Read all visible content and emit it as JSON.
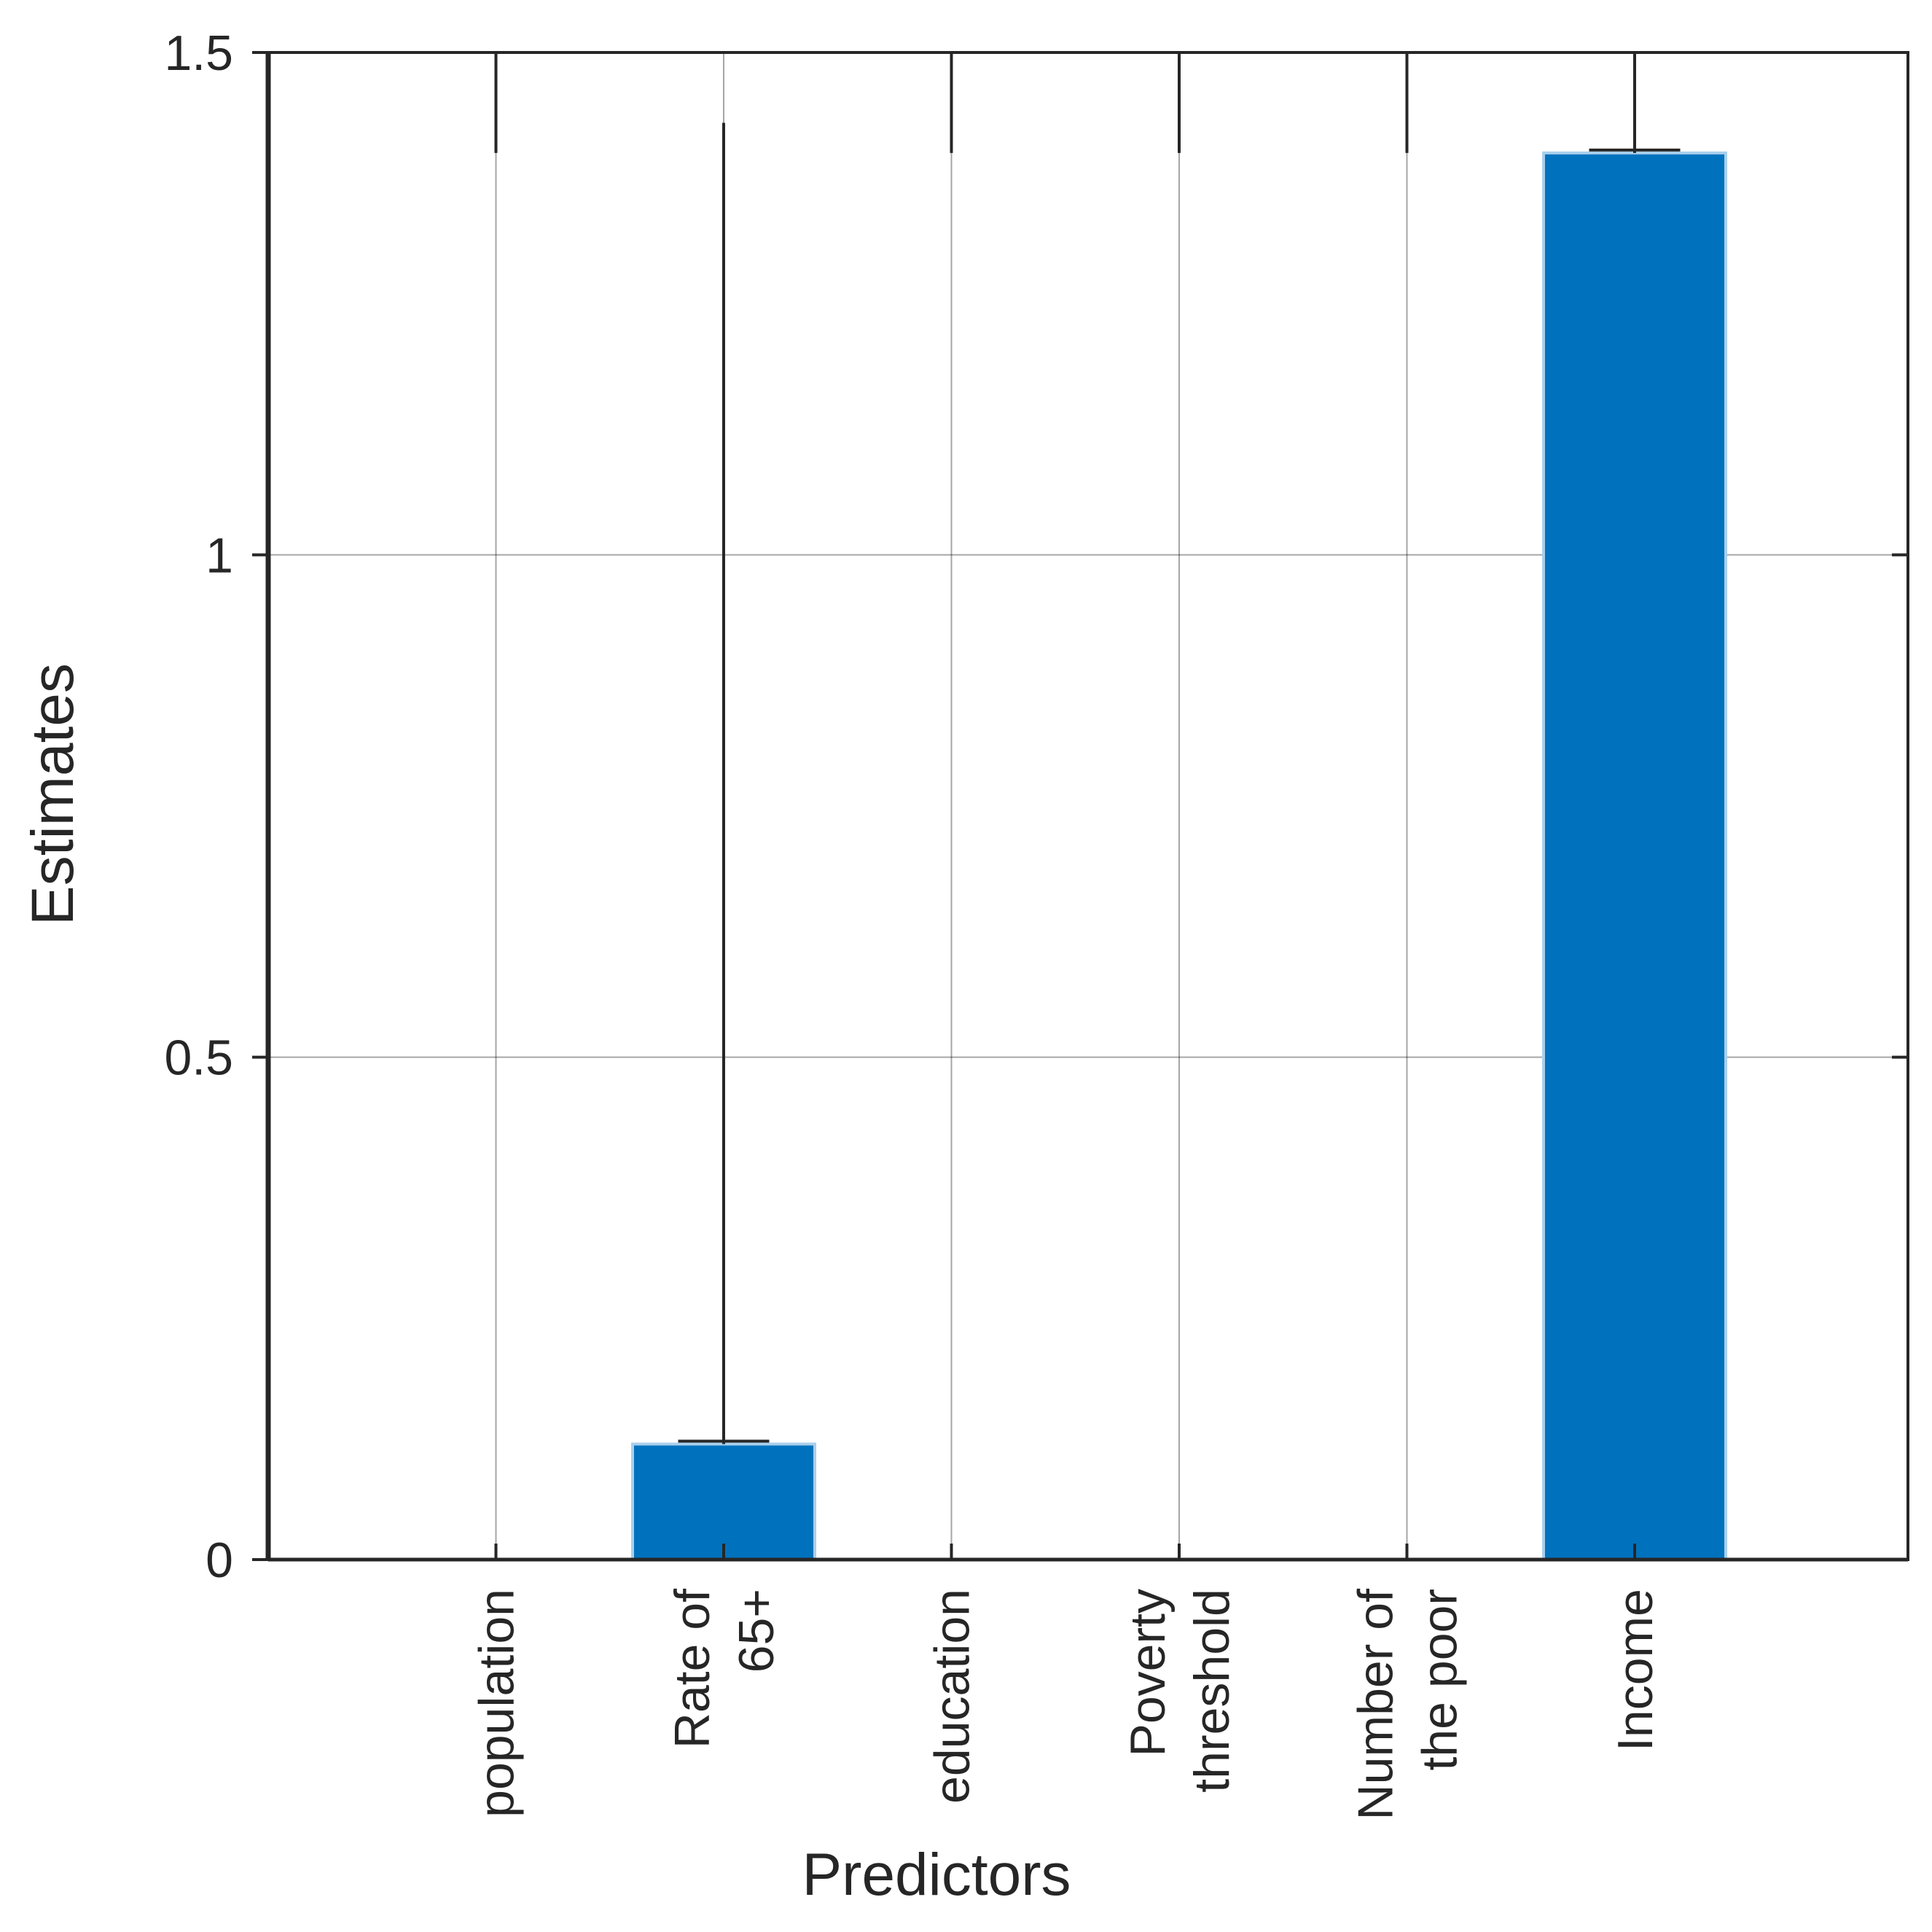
{
  "chart_data": {
    "type": "bar",
    "categories": [
      [
        "population"
      ],
      [
        "Rate of",
        "65+"
      ],
      [
        "education"
      ],
      [
        "Poverty",
        "threshold"
      ],
      [
        "Number of",
        "the poor"
      ],
      [
        "Income"
      ]
    ],
    "values": [
      0,
      0.115,
      0,
      0,
      0,
      1.4
    ],
    "error_upper": [
      1.4,
      1.43,
      1.4,
      1.4,
      1.4,
      1.5
    ],
    "error_lower": [
      1.5,
      0.13,
      1.5,
      1.5,
      1.5,
      1.42
    ],
    "xlabel": "Predictors",
    "ylabel": "Estimates",
    "ylim": [
      0,
      1.5
    ],
    "yticks": [
      0,
      0.5,
      1,
      1.5
    ],
    "ytick_labels": [
      "0",
      "0.5",
      "1",
      "1.5"
    ],
    "grid": true,
    "colors": {
      "bar": "#0072bd",
      "axis": "#262626",
      "grid": "#000000"
    }
  }
}
